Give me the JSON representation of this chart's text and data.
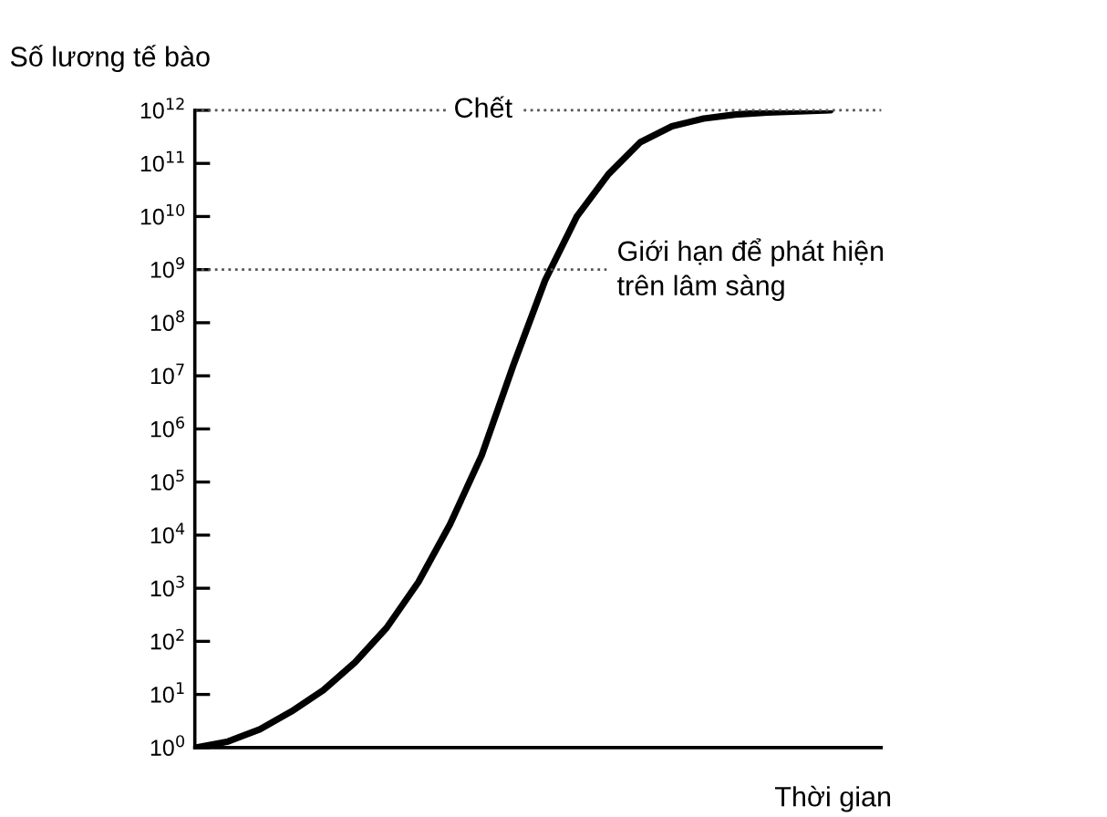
{
  "chart_data": {
    "type": "line",
    "xlabel": "Thời gian",
    "ylabel": "Số lương tế bào",
    "categories": [
      null,
      null,
      null,
      null,
      null,
      null,
      null,
      null,
      null,
      null,
      null,
      null,
      null,
      null,
      null,
      null,
      null,
      null,
      null,
      null,
      null
    ],
    "series": [
      {
        "color": "#000000",
        "values": [
          1,
          1.3,
          2.2,
          4.8,
          12,
          40,
          180,
          1300,
          16000,
          320000,
          16000000,
          630000000,
          10000000000,
          63000000000,
          250000000000,
          500000000000,
          700000000000,
          830000000000,
          910000000000,
          950000000000,
          1000000000000
        ]
      }
    ],
    "log": "y",
    "ylim": [
      1,
      1000000000000
    ],
    "yticks": [
      {
        "value": 1,
        "label": "10$^{0}$"
      },
      {
        "value": 10,
        "label": "10$^{1}$"
      },
      {
        "value": 100,
        "label": "10$^{2}$"
      },
      {
        "value": 1000,
        "label": "10$^{3}$"
      },
      {
        "value": 10000,
        "label": "10$^{4}$"
      },
      {
        "value": 100000,
        "label": "10$^{5}$"
      },
      {
        "value": 1000000,
        "label": "10$^{6}$"
      },
      {
        "value": 10000000,
        "label": "10$^{7}$"
      },
      {
        "value": 100000000,
        "label": "10$^{8}$"
      },
      {
        "value": 1000000000,
        "label": "10$^{9}$"
      },
      {
        "value": 10000000000,
        "label": "10$^{10}$"
      },
      {
        "value": 100000000000,
        "label": "10$^{11}$"
      },
      {
        "value": 1000000000000,
        "label": "10$^{12}$"
      }
    ],
    "ref_lines": [
      {
        "axis": "y",
        "value": 1000000000000,
        "label": "Chết",
        "color": "#555555",
        "line_style": "dotted"
      },
      {
        "axis": "y",
        "value": 1000000000,
        "label": "Giới hạn để phát hiện\ntrên lâm sàng",
        "color": "#555555",
        "line_style": "dotted"
      }
    ],
    "grid": false,
    "marker": "none",
    "line_style": "solid"
  }
}
